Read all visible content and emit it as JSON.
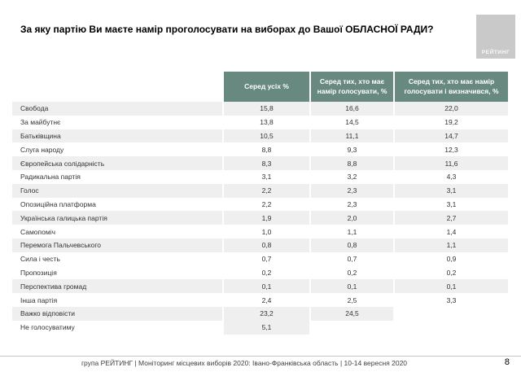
{
  "title": "За яку партію Ви маєте намір проголосувати на виборах до Вашої ОБЛАСНОЇ РАДИ?",
  "logo": {
    "label": "РЕЙТИНГ"
  },
  "table": {
    "columns": [
      "Серед усіх %",
      "Серед тих, хто має намір голосувати, %",
      "Серед тих, хто має намір голосувати і визначився, %"
    ],
    "rows": [
      {
        "label": "Свобода",
        "values": [
          "15,8",
          "16,6",
          "22,0"
        ]
      },
      {
        "label": "За майбутнє",
        "values": [
          "13,8",
          "14,5",
          "19,2"
        ]
      },
      {
        "label": "Батьківщина",
        "values": [
          "10,5",
          "11,1",
          "14,7"
        ]
      },
      {
        "label": "Слуга народу",
        "values": [
          "8,8",
          "9,3",
          "12,3"
        ]
      },
      {
        "label": "Європейська солідарність",
        "values": [
          "8,3",
          "8,8",
          "11,6"
        ]
      },
      {
        "label": "Радикальна партія",
        "values": [
          "3,1",
          "3,2",
          "4,3"
        ]
      },
      {
        "label": "Голос",
        "values": [
          "2,2",
          "2,3",
          "3,1"
        ]
      },
      {
        "label": "Опозиційна платформа",
        "values": [
          "2,2",
          "2,3",
          "3,1"
        ]
      },
      {
        "label": "Українська галицька партія",
        "values": [
          "1,9",
          "2,0",
          "2,7"
        ]
      },
      {
        "label": "Самопоміч",
        "values": [
          "1,0",
          "1,1",
          "1,4"
        ]
      },
      {
        "label": "Перемога Пальчевського",
        "values": [
          "0,8",
          "0,8",
          "1,1"
        ]
      },
      {
        "label": "Сила і честь",
        "values": [
          "0,7",
          "0,7",
          "0,9"
        ]
      },
      {
        "label": "Пропозиція",
        "values": [
          "0,2",
          "0,2",
          "0,2"
        ]
      },
      {
        "label": "Перспектива громад",
        "values": [
          "0,1",
          "0,1",
          "0,1"
        ]
      },
      {
        "label": "Інша партія",
        "values": [
          "2,4",
          "2,5",
          "3,3"
        ]
      },
      {
        "label": "Важко відповісти",
        "values": [
          "23,2",
          "24,5",
          ""
        ]
      },
      {
        "label": "Не голосуватиму",
        "values": [
          "5,1",
          "",
          ""
        ]
      }
    ]
  },
  "chart_data": {
    "type": "table",
    "title": "За яку партію Ви маєте намір проголосувати на виборах до Вашої ОБЛАСНОЇ РАДИ?",
    "categories": [
      "Свобода",
      "За майбутнє",
      "Батьківщина",
      "Слуга народу",
      "Європейська солідарність",
      "Радикальна партія",
      "Голос",
      "Опозиційна платформа",
      "Українська галицька партія",
      "Самопоміч",
      "Перемога Пальчевського",
      "Сила і честь",
      "Пропозиція",
      "Перспектива громад",
      "Інша партія",
      "Важко відповісти",
      "Не голосуватиму"
    ],
    "series": [
      {
        "name": "Серед усіх %",
        "values": [
          15.8,
          13.8,
          10.5,
          8.8,
          8.3,
          3.1,
          2.2,
          2.2,
          1.9,
          1.0,
          0.8,
          0.7,
          0.2,
          0.1,
          2.4,
          23.2,
          5.1
        ]
      },
      {
        "name": "Серед тих, хто має намір голосувати, %",
        "values": [
          16.6,
          14.5,
          11.1,
          9.3,
          8.8,
          3.2,
          2.3,
          2.3,
          2.0,
          1.1,
          0.8,
          0.7,
          0.2,
          0.1,
          2.5,
          24.5,
          null
        ]
      },
      {
        "name": "Серед тих, хто має намір голосувати і визначився, %",
        "values": [
          22.0,
          19.2,
          14.7,
          12.3,
          11.6,
          4.3,
          3.1,
          3.1,
          2.7,
          1.4,
          1.1,
          0.9,
          0.2,
          0.1,
          3.3,
          null,
          null
        ]
      }
    ]
  },
  "footer": {
    "text": "група РЕЙТИНГ  | Моніторинг місцевих виборів 2020: Івано-Франківська область | 10-14 вересня 2020",
    "page": "8"
  },
  "colors": {
    "header_bg": "#68897f",
    "row_stripe": "#efefef",
    "logo_bg": "#c9c9c9"
  }
}
